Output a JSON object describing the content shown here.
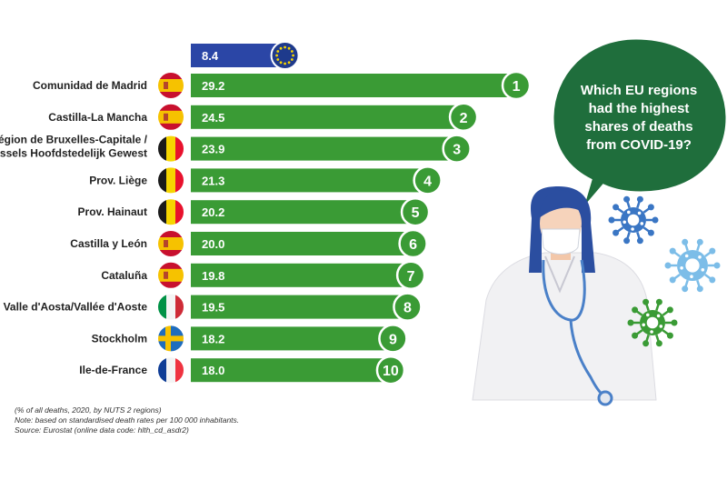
{
  "chart_data": {
    "type": "bar",
    "orientation": "horizontal",
    "reference": {
      "name": "EU",
      "value": 8.4,
      "flag": "eu-flag"
    },
    "categories": [
      "Comunidad de Madrid",
      "Castilla-La Mancha",
      "Région de Bruxelles-Capitale / Brussels Hoofdstedelijk Gewest",
      "Prov. Liège",
      "Prov. Hainaut",
      "Castilla y León",
      "Cataluña",
      "Valle d'Aosta/Vallée d'Aoste",
      "Stockholm",
      "Ile-de-France"
    ],
    "values": [
      29.2,
      24.5,
      23.9,
      21.3,
      20.2,
      20.0,
      19.8,
      19.5,
      18.2,
      18.0
    ],
    "value_labels": [
      "29.2",
      "24.5",
      "23.9",
      "21.3",
      "20.2",
      "20.0",
      "19.8",
      "19.5",
      "18.2",
      "18.0"
    ],
    "ranks": [
      "1",
      "2",
      "3",
      "4",
      "5",
      "6",
      "7",
      "8",
      "9",
      "10"
    ],
    "flags": [
      "spain-flag",
      "spain-flag",
      "belgium-flag",
      "belgium-flag",
      "belgium-flag",
      "spain-flag",
      "spain-flag",
      "italy-flag",
      "sweden-flag",
      "france-flag"
    ],
    "reference_label": "8.4",
    "xlim": [
      0,
      30
    ],
    "grid": false,
    "legend": "none"
  },
  "bubble": {
    "lines": [
      "Which EU regions",
      "had the highest",
      "shares of deaths",
      "from COVID-19?"
    ]
  },
  "notes": {
    "line1": "(% of all deaths, 2020, by NUTS 2 regions)",
    "line2": "Note: based on standardised death rates per 100 000 inhabitants.",
    "line3": "Source: Eurostat (online data code: hlth_cd_asdr2)"
  },
  "colors": {
    "green": "#3a9b35",
    "dark_green": "#1f6e3c",
    "blue": "#2b46a6",
    "eu_flag": "#1e3a8c",
    "virus_blue": "#3a76c4",
    "virus_light": "#7cbde8",
    "virus_green": "#3a9b35"
  }
}
